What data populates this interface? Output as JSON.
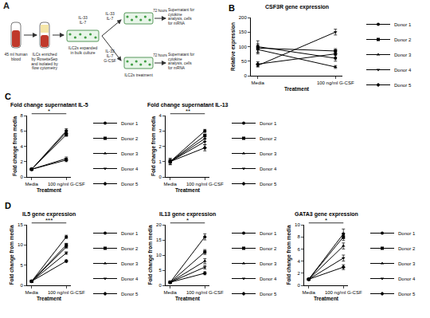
{
  "diagram": {
    "panel": "A",
    "blood": "45 ml human blood",
    "enrichment": "ILCs enriched by RosetteSep and isolated by flow cytometry",
    "expansion": "ILC2s expanded in bulk culture",
    "expansion_cytokines": [
      "IL-33",
      "IL-7"
    ],
    "control_cytokines": [
      "IL-33",
      "IL-7"
    ],
    "treatment_cytokines": [
      "IL-33",
      "IL-7",
      "G-CSF"
    ],
    "incubation": "72 hours",
    "output": "Supernatant for cytokine analysis, cells for mRNA",
    "treatment": "ILC2s treatment"
  },
  "chart_data": [
    {
      "panel": "B",
      "type": "line",
      "title": "CSF3R gene expression",
      "x_label": "Treatment",
      "y_label": "Relative expression",
      "categories": [
        "Media",
        "100 ng/ml G-CSF"
      ],
      "ylim": [
        0,
        200
      ],
      "yticks": [
        0,
        50,
        100,
        150,
        200
      ],
      "legend": "right",
      "series": [
        {
          "name": "Donor 1",
          "color": "#000000",
          "marker": "circle",
          "values": [
            100,
            60
          ],
          "errors": [
            20,
            10
          ]
        },
        {
          "name": "Donor 2",
          "color": "#000000",
          "marker": "square",
          "values": [
            95,
            85
          ],
          "errors": [
            15,
            8
          ]
        },
        {
          "name": "Donor 3",
          "color": "#000000",
          "marker": "triangle-up",
          "values": [
            90,
            30
          ],
          "errors": [
            15,
            5
          ]
        },
        {
          "name": "Donor 4",
          "color": "#000000",
          "marker": "triangle-down",
          "values": [
            35,
            150
          ],
          "errors": [
            5,
            10
          ]
        },
        {
          "name": "Donor 5",
          "color": "#000000",
          "marker": "diamond",
          "values": [
            40,
            75
          ],
          "errors": [
            8,
            12
          ]
        }
      ]
    },
    {
      "panel": "C",
      "type": "line",
      "title": "Fold change supernatant IL-5",
      "x_label": "Treatment",
      "y_label": "Fold change from media",
      "categories": [
        "Media",
        "100 ng/ml G-CSF"
      ],
      "ylim": [
        0,
        8
      ],
      "yticks": [
        0,
        2,
        4,
        6,
        8
      ],
      "legend": "right",
      "annotations": [
        "*"
      ],
      "series": [
        {
          "name": "Donor 1",
          "color": "#000000",
          "marker": "circle",
          "values": [
            1,
            6.0
          ],
          "errors": [
            0.1,
            0.3
          ]
        },
        {
          "name": "Donor 2",
          "color": "#000000",
          "marker": "square",
          "values": [
            1,
            5.5
          ],
          "errors": [
            0.1,
            0.2
          ]
        },
        {
          "name": "Donor 3",
          "color": "#000000",
          "marker": "triangle-up",
          "values": [
            1,
            5.8
          ],
          "errors": [
            0.1,
            0.3
          ]
        },
        {
          "name": "Donor 4",
          "color": "#000000",
          "marker": "triangle-down",
          "values": [
            1,
            2.4
          ],
          "errors": [
            0.1,
            0.2
          ]
        },
        {
          "name": "Donor 5",
          "color": "#000000",
          "marker": "diamond",
          "values": [
            1,
            2.2
          ],
          "errors": [
            0.1,
            0.2
          ]
        }
      ]
    },
    {
      "type": "line",
      "title": "Fold change supernatant IL-13",
      "x_label": "Treatment",
      "y_label": "Fold change from media",
      "categories": [
        "Media",
        "100 ng/ml G-CSF"
      ],
      "ylim": [
        0,
        4
      ],
      "yticks": [
        0,
        1,
        2,
        3,
        4
      ],
      "legend": "right",
      "annotations": [
        "**"
      ],
      "series": [
        {
          "name": "Donor 1",
          "color": "#000000",
          "marker": "circle",
          "values": [
            1,
            3.0
          ],
          "errors": [
            0.2,
            0.1
          ]
        },
        {
          "name": "Donor 2",
          "color": "#000000",
          "marker": "square",
          "values": [
            1,
            2.7
          ],
          "errors": [
            0.1,
            0.1
          ]
        },
        {
          "name": "Donor 3",
          "color": "#000000",
          "marker": "triangle-up",
          "values": [
            1,
            2.5
          ],
          "errors": [
            0.2,
            0.2
          ]
        },
        {
          "name": "Donor 4",
          "color": "#000000",
          "marker": "triangle-down",
          "values": [
            1,
            2.3
          ],
          "errors": [
            0.1,
            0.2
          ]
        },
        {
          "name": "Donor 5",
          "color": "#000000",
          "marker": "diamond",
          "values": [
            1,
            1.9
          ],
          "errors": [
            0.1,
            0.2
          ]
        }
      ]
    },
    {
      "panel": "D",
      "type": "line",
      "title": "IL5 gene expression",
      "x_label": "Treatment",
      "y_label": "Fold change from media",
      "categories": [
        "Media",
        "100 ng/ml G-CSF"
      ],
      "ylim": [
        0,
        15
      ],
      "yticks": [
        0,
        5,
        10,
        15
      ],
      "legend": "right",
      "annotations": [
        "***"
      ],
      "series": [
        {
          "name": "Donor 1",
          "color": "#000000",
          "marker": "circle",
          "values": [
            1,
            12
          ],
          "errors": [
            0.2,
            0.4
          ]
        },
        {
          "name": "Donor 2",
          "color": "#000000",
          "marker": "square",
          "values": [
            1,
            10
          ],
          "errors": [
            0.2,
            0.4
          ]
        },
        {
          "name": "Donor 3",
          "color": "#000000",
          "marker": "triangle-up",
          "values": [
            1,
            9.5
          ],
          "errors": [
            0.2,
            0.3
          ]
        },
        {
          "name": "Donor 4",
          "color": "#000000",
          "marker": "triangle-down",
          "values": [
            1,
            8
          ],
          "errors": [
            0.2,
            0.3
          ]
        },
        {
          "name": "Donor 5",
          "color": "#000000",
          "marker": "diamond",
          "values": [
            1,
            6
          ],
          "errors": [
            0.2,
            0.3
          ]
        }
      ]
    },
    {
      "type": "line",
      "title": "IL13 gene expression",
      "x_label": "Treatment",
      "y_label": "Fold change from media",
      "categories": [
        "Media",
        "100 ng/ml G-CSF"
      ],
      "ylim": [
        0,
        20
      ],
      "yticks": [
        0,
        5,
        10,
        15,
        20
      ],
      "legend": "right",
      "annotations": [
        "*"
      ],
      "series": [
        {
          "name": "Donor 1",
          "color": "#000000",
          "marker": "circle",
          "values": [
            1,
            16
          ],
          "errors": [
            0.3,
            1.0
          ]
        },
        {
          "name": "Donor 2",
          "color": "#000000",
          "marker": "square",
          "values": [
            1,
            11
          ],
          "errors": [
            0.3,
            0.8
          ]
        },
        {
          "name": "Donor 3",
          "color": "#000000",
          "marker": "triangle-up",
          "values": [
            1,
            8
          ],
          "errors": [
            0.3,
            0.8
          ]
        },
        {
          "name": "Donor 4",
          "color": "#000000",
          "marker": "triangle-down",
          "values": [
            1,
            6
          ],
          "errors": [
            0.3,
            0.6
          ]
        },
        {
          "name": "Donor 5",
          "color": "#000000",
          "marker": "diamond",
          "values": [
            1,
            4
          ],
          "errors": [
            0.3,
            0.5
          ]
        }
      ]
    },
    {
      "type": "line",
      "title": "GATA3 gene expression",
      "x_label": "Treatment",
      "y_label": "Fold change from media",
      "categories": [
        "Media",
        "100 ng/ml G-CSF"
      ],
      "ylim": [
        0,
        10
      ],
      "yticks": [
        0,
        2,
        4,
        6,
        8,
        10
      ],
      "legend": "right",
      "annotations": [
        "*"
      ],
      "series": [
        {
          "name": "Donor 1",
          "color": "#000000",
          "marker": "circle",
          "values": [
            1,
            8.5
          ],
          "errors": [
            0.1,
            0.8
          ]
        },
        {
          "name": "Donor 2",
          "color": "#000000",
          "marker": "square",
          "values": [
            1,
            8
          ],
          "errors": [
            0.1,
            0.6
          ]
        },
        {
          "name": "Donor 3",
          "color": "#000000",
          "marker": "triangle-up",
          "values": [
            1,
            6.5
          ],
          "errors": [
            0.1,
            0.5
          ]
        },
        {
          "name": "Donor 4",
          "color": "#000000",
          "marker": "triangle-down",
          "values": [
            1,
            4.5
          ],
          "errors": [
            0.1,
            0.5
          ]
        },
        {
          "name": "Donor 5",
          "color": "#000000",
          "marker": "diamond",
          "values": [
            1,
            3
          ],
          "errors": [
            0.1,
            0.4
          ]
        }
      ]
    }
  ]
}
